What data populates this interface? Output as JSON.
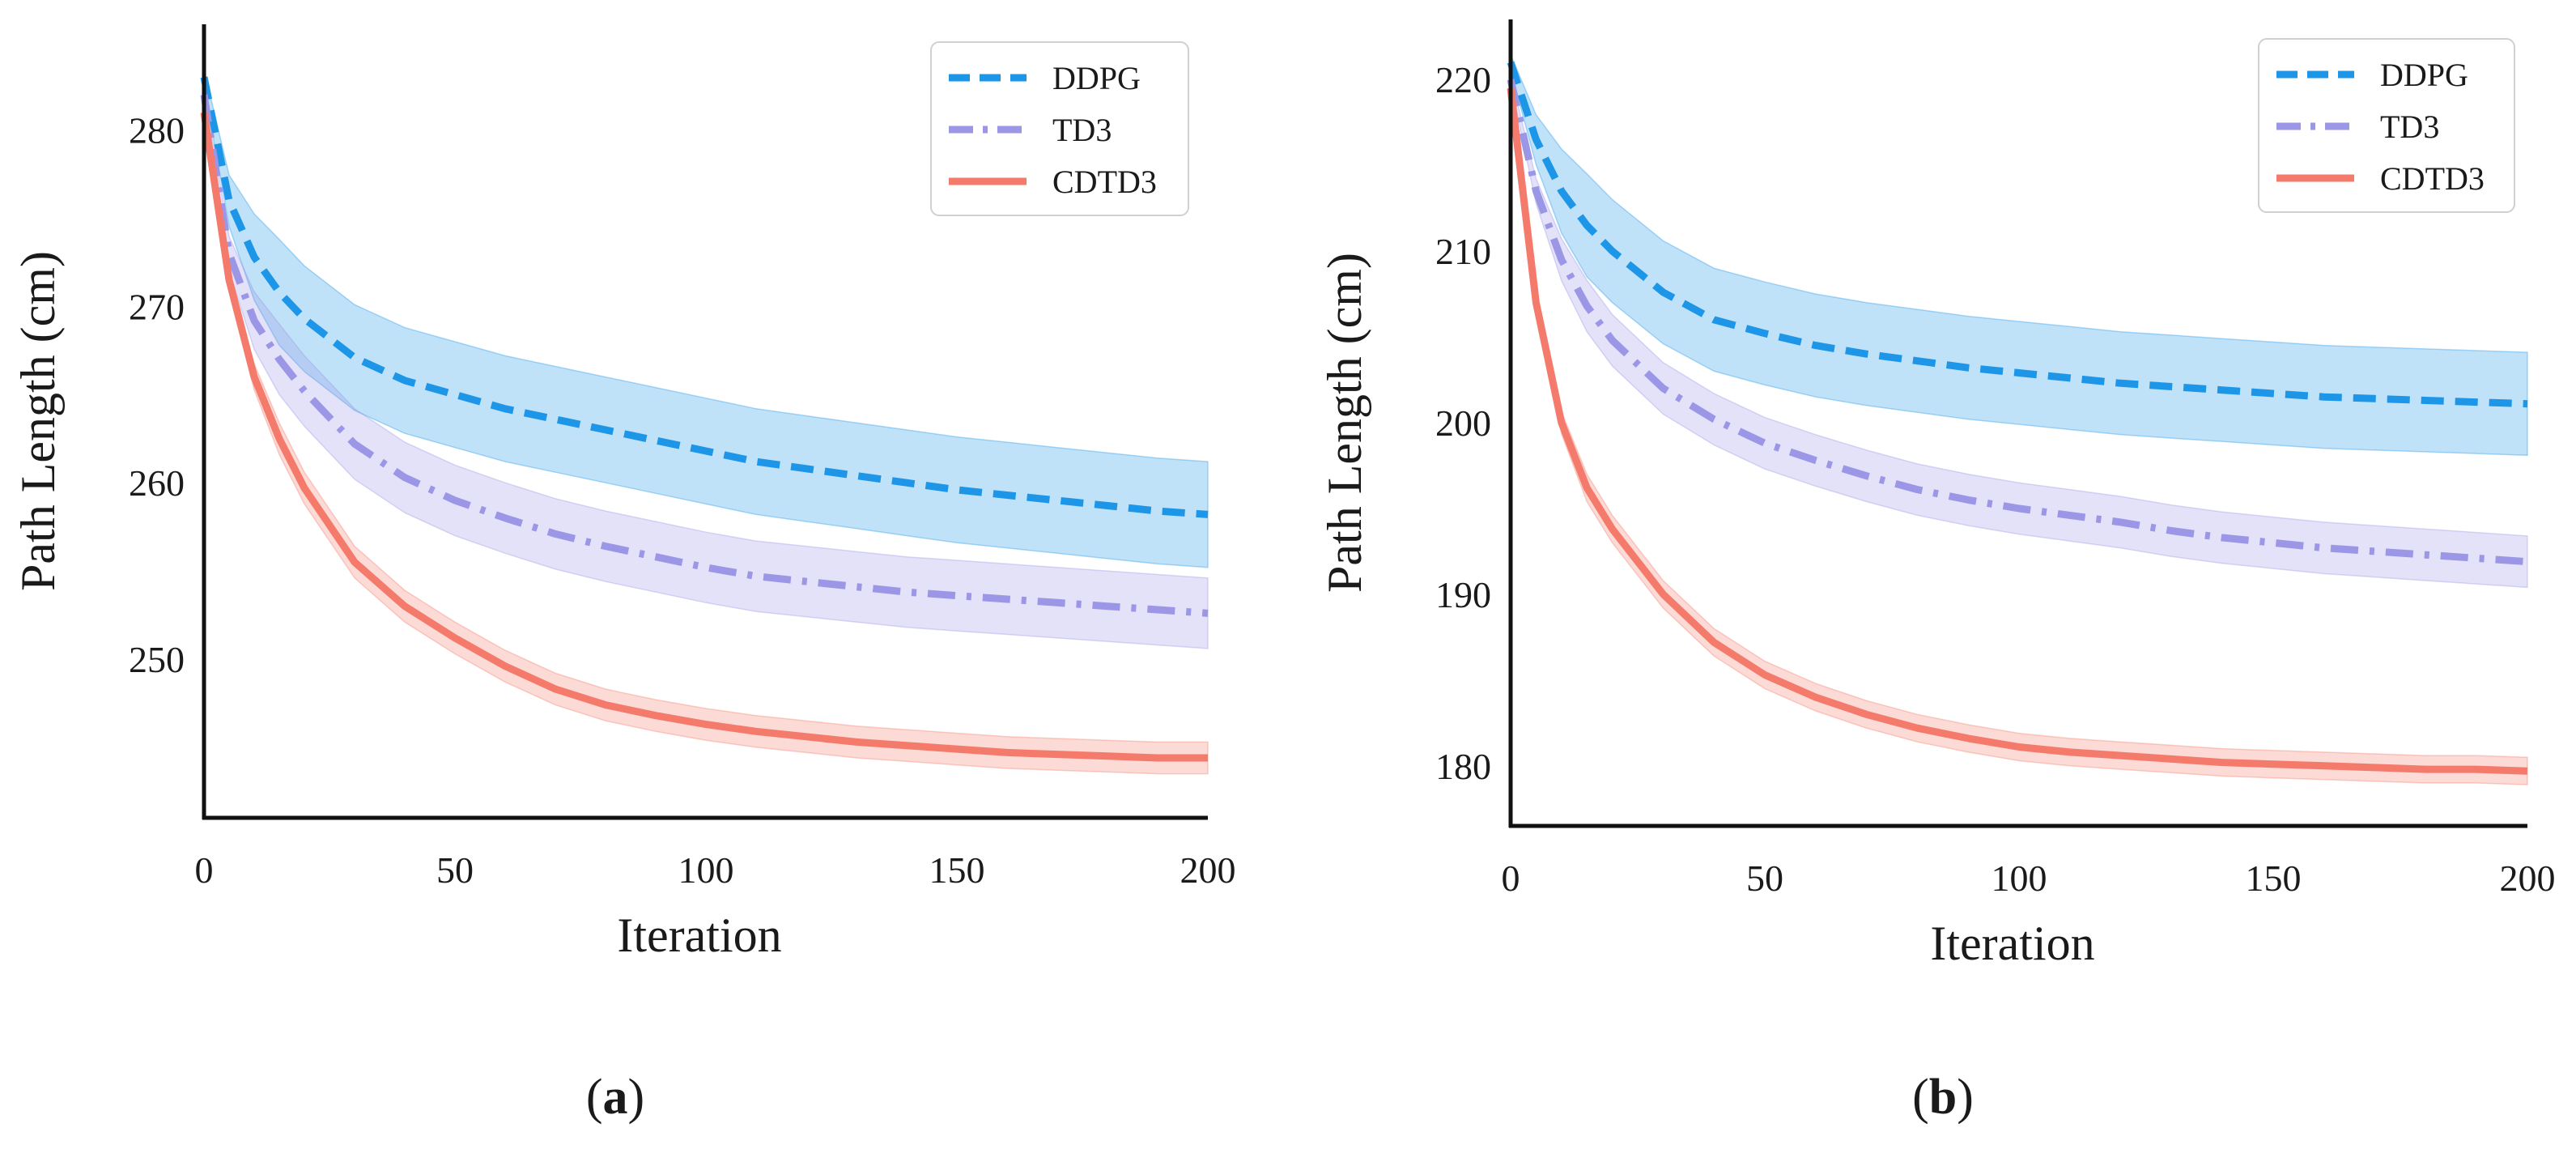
{
  "colors": {
    "DDPG": "#1e96e8",
    "TD3": "#9b96e6",
    "CDTD3": "#f47b6b",
    "axis": "#111111"
  },
  "chart_data": [
    {
      "type": "line",
      "panel": "a",
      "caption": {
        "open": "(",
        "letter": "a",
        "close": ")"
      },
      "xlabel": "Iteration",
      "ylabel": "Path Length (cm)",
      "xlim": [
        0,
        200
      ],
      "ylim": [
        241,
        286
      ],
      "xticks": [
        0,
        50,
        100,
        150,
        200
      ],
      "yticks": [
        250,
        260,
        270,
        280
      ],
      "grid": false,
      "legend_position": "top-right",
      "series": [
        {
          "name": "DDPG",
          "style": "dashed",
          "color_key": "DDPG",
          "band": 3.0,
          "x": [
            0,
            5,
            10,
            15,
            20,
            30,
            40,
            50,
            60,
            70,
            80,
            90,
            100,
            110,
            120,
            130,
            140,
            150,
            160,
            170,
            180,
            190,
            200
          ],
          "y": [
            283,
            276,
            272.8,
            270.8,
            269.3,
            267.1,
            265.8,
            265.0,
            264.2,
            263.6,
            263.0,
            262.4,
            261.8,
            261.2,
            260.8,
            260.4,
            260.0,
            259.6,
            259.3,
            259.0,
            258.7,
            258.4,
            258.2
          ]
        },
        {
          "name": "TD3",
          "style": "dashdot",
          "color_key": "TD3",
          "band": 2.0,
          "x": [
            0,
            5,
            10,
            15,
            20,
            30,
            40,
            50,
            60,
            70,
            80,
            90,
            100,
            110,
            120,
            130,
            140,
            150,
            160,
            170,
            180,
            190,
            200
          ],
          "y": [
            282,
            273,
            269.2,
            267.0,
            265.2,
            262.2,
            260.3,
            259.0,
            258.0,
            257.1,
            256.4,
            255.8,
            255.2,
            254.7,
            254.4,
            254.1,
            253.8,
            253.6,
            253.4,
            253.2,
            253.0,
            252.8,
            252.6
          ]
        },
        {
          "name": "CDTD3",
          "style": "solid",
          "color_key": "CDTD3",
          "band": 0.9,
          "x": [
            0,
            5,
            10,
            15,
            20,
            30,
            40,
            50,
            60,
            70,
            80,
            90,
            100,
            110,
            120,
            130,
            140,
            150,
            160,
            170,
            180,
            190,
            200
          ],
          "y": [
            281,
            271.5,
            266.0,
            262.5,
            259.7,
            255.5,
            253.0,
            251.2,
            249.6,
            248.3,
            247.4,
            246.8,
            246.3,
            245.9,
            245.6,
            245.3,
            245.1,
            244.9,
            244.7,
            244.6,
            244.5,
            244.4,
            244.4
          ]
        }
      ]
    },
    {
      "type": "line",
      "panel": "b",
      "caption": {
        "open": "(",
        "letter": "b",
        "close": ")"
      },
      "xlabel": "Iteration",
      "ylabel": "Path Length (cm)",
      "xlim": [
        0,
        200
      ],
      "ylim": [
        176.5,
        223.5
      ],
      "xticks": [
        0,
        50,
        100,
        150,
        200
      ],
      "yticks": [
        180,
        190,
        200,
        210,
        220
      ],
      "grid": false,
      "legend_position": "top-right",
      "series": [
        {
          "name": "DDPG",
          "style": "dashed",
          "color_key": "DDPG",
          "band": 3.0,
          "x": [
            0,
            5,
            10,
            15,
            20,
            30,
            40,
            50,
            60,
            70,
            80,
            90,
            100,
            110,
            120,
            130,
            140,
            150,
            160,
            170,
            180,
            190,
            200
          ],
          "y": [
            221,
            216.5,
            213.5,
            211.5,
            210.0,
            207.6,
            206.0,
            205.2,
            204.5,
            204.0,
            203.6,
            203.2,
            202.9,
            202.6,
            202.3,
            202.1,
            201.9,
            201.7,
            201.5,
            201.4,
            201.3,
            201.2,
            201.1
          ]
        },
        {
          "name": "TD3",
          "style": "dashdot",
          "color_key": "TD3",
          "band": 1.5,
          "x": [
            0,
            5,
            10,
            15,
            20,
            30,
            40,
            50,
            60,
            70,
            80,
            90,
            100,
            110,
            120,
            130,
            140,
            150,
            160,
            170,
            180,
            190,
            200
          ],
          "y": [
            220,
            213.5,
            209.5,
            206.8,
            204.8,
            202.0,
            200.2,
            198.8,
            197.8,
            196.9,
            196.1,
            195.5,
            195.0,
            194.6,
            194.2,
            193.7,
            193.3,
            193.0,
            192.7,
            192.5,
            192.3,
            192.1,
            191.9
          ]
        },
        {
          "name": "CDTD3",
          "style": "solid",
          "color_key": "CDTD3",
          "band": 0.8,
          "x": [
            0,
            5,
            10,
            15,
            20,
            30,
            40,
            50,
            60,
            70,
            80,
            90,
            100,
            110,
            120,
            130,
            140,
            150,
            160,
            170,
            180,
            190,
            200
          ],
          "y": [
            219.5,
            207.0,
            200.0,
            196.2,
            193.8,
            190.0,
            187.2,
            185.3,
            184.0,
            183.0,
            182.2,
            181.6,
            181.1,
            180.8,
            180.6,
            180.4,
            180.2,
            180.1,
            180.0,
            179.9,
            179.8,
            179.8,
            179.7
          ]
        }
      ]
    }
  ]
}
